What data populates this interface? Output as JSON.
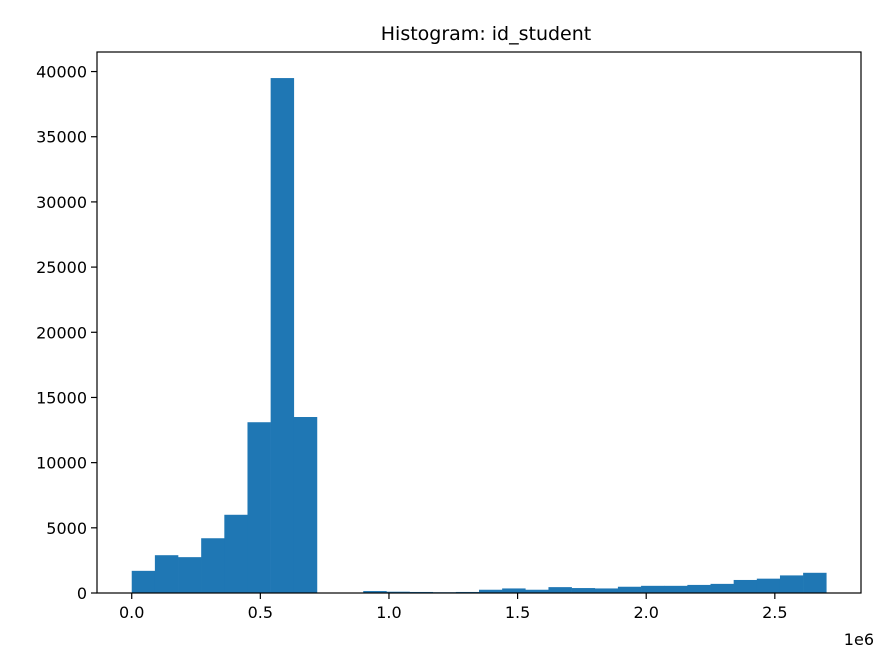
{
  "chart_data": {
    "type": "bar",
    "title": "Histogram: id_student",
    "xlabel": "",
    "ylabel": "",
    "x_offset_text": "1e6",
    "bar_color": "#1f77b4",
    "xlim": [
      -0.135,
      2.835
    ],
    "ylim": [
      0,
      41500
    ],
    "x_ticks": [
      {
        "value": 0.0,
        "label": "0.0"
      },
      {
        "value": 0.5,
        "label": "0.5"
      },
      {
        "value": 1.0,
        "label": "1.0"
      },
      {
        "value": 1.5,
        "label": "1.5"
      },
      {
        "value": 2.0,
        "label": "2.0"
      },
      {
        "value": 2.5,
        "label": "2.5"
      }
    ],
    "y_ticks": [
      {
        "value": 0,
        "label": "0"
      },
      {
        "value": 5000,
        "label": "5000"
      },
      {
        "value": 10000,
        "label": "10000"
      },
      {
        "value": 15000,
        "label": "15000"
      },
      {
        "value": 20000,
        "label": "20000"
      },
      {
        "value": 25000,
        "label": "25000"
      },
      {
        "value": 30000,
        "label": "30000"
      },
      {
        "value": 35000,
        "label": "35000"
      },
      {
        "value": 40000,
        "label": "40000"
      }
    ],
    "bin_start": 0.0,
    "bin_width": 0.09,
    "values": [
      1700,
      2900,
      2750,
      4200,
      6000,
      13100,
      39500,
      13500,
      0,
      0,
      150,
      100,
      80,
      60,
      80,
      250,
      350,
      250,
      450,
      380,
      350,
      480,
      550,
      550,
      620,
      700,
      1000,
      1100,
      1350,
      1550
    ]
  }
}
